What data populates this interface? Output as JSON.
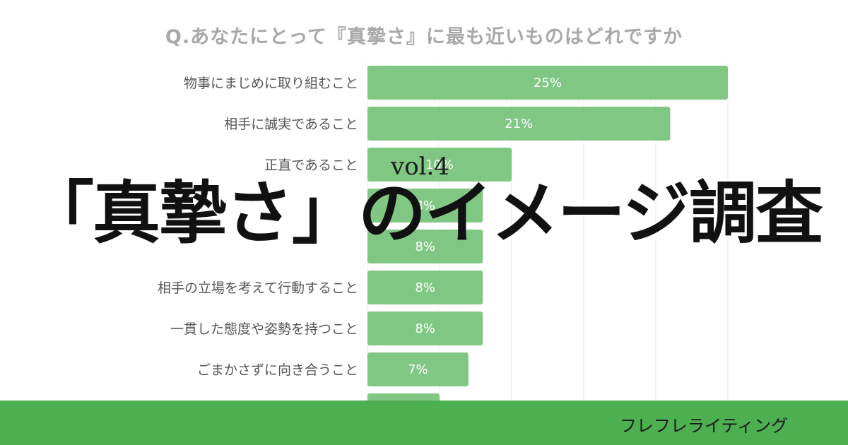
{
  "question": "Q.あなたにとって『真摯さ』に最も近いものはどれですか",
  "headline": "「真摯さ」のイメージ調査",
  "vol": "vol.4",
  "brand": "フレフレライティング",
  "colors": {
    "bar": "#81c784",
    "footer": "#4caf50",
    "question": "#a8a8a8"
  },
  "chart_data": {
    "type": "bar",
    "orientation": "horizontal",
    "unit": "%",
    "grid": true,
    "categories": [
      "物事にまじめに取り組むこと",
      "相手に誠実であること",
      "正直であること",
      "",
      "",
      "相手の立場を考えて行動すること",
      "一貫した態度や姿勢を持つこと",
      "ごまかさずに向き合うこと",
      ""
    ],
    "values": [
      25,
      21,
      10,
      8,
      8,
      8,
      8,
      7,
      5
    ],
    "labels": [
      "25%",
      "21%",
      "10%",
      "8%",
      "8%",
      "8%",
      "8%",
      "7%",
      ""
    ],
    "xlim": [
      0,
      25
    ]
  }
}
